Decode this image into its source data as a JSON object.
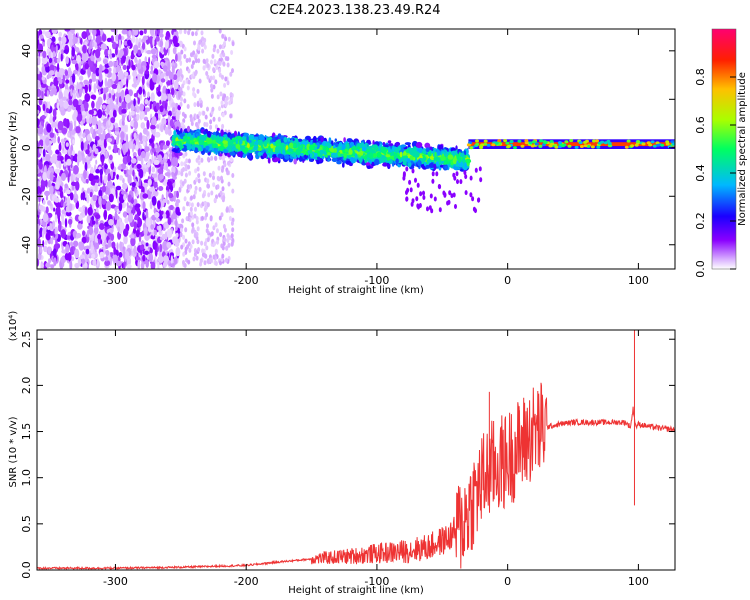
{
  "title": "C2E4.2023.138.23.49.R24",
  "chart_data": [
    {
      "type": "heatmap",
      "xlabel": "Height of straight line (km)",
      "ylabel": "Frequency (Hz)",
      "xlim": [
        -360,
        128
      ],
      "ylim": [
        -50,
        49
      ],
      "x_ticks": [
        -300,
        -200,
        -100,
        0,
        100
      ],
      "x_tick_labels": [
        "-300",
        "-200",
        "-100",
        "0",
        "100"
      ],
      "y_ticks": [
        40,
        20,
        0,
        -20,
        -40
      ],
      "y_tick_labels": [
        "40",
        "20",
        "0",
        "-20",
        "-40"
      ],
      "colorbar": {
        "label": "Normalized spectral amplitude",
        "range": [
          0,
          1
        ],
        "ticks": [
          0.0,
          0.2,
          0.4,
          0.6,
          0.8
        ],
        "tick_labels": [
          "0.0",
          "0.2",
          "0.4",
          "0.6",
          "0.8"
        ],
        "colors": [
          "#ffffff",
          "#8800ff",
          "#0000ff",
          "#00ccff",
          "#00ff66",
          "#ccff00",
          "#ffaa00",
          "#ff0000",
          "#ff0088"
        ]
      },
      "regions": [
        {
          "x": [
            -360,
            -250
          ],
          "freq_spread": 49,
          "amplitude": 0.1
        },
        {
          "x": [
            -250,
            -210
          ],
          "freq_spread": 49,
          "amplitude": 0.03
        },
        {
          "x": [
            -255,
            -30
          ],
          "freq_center_start": 3,
          "freq_center_end": -5,
          "freq_halfwidth": 6,
          "amplitude": 0.5
        },
        {
          "x": [
            -30,
            128
          ],
          "freq_center": 1.5,
          "freq_halfwidth": 1,
          "amplitude": 0.85
        }
      ],
      "grid": false
    },
    {
      "type": "line",
      "xlabel": "Height of straight line (km)",
      "ylabel": "SNR (10 * v/v)",
      "y_scale_note": "(x10⁴)",
      "xlim": [
        -360,
        128
      ],
      "ylim": [
        0,
        2.6
      ],
      "x_ticks": [
        -300,
        -200,
        -100,
        0,
        100
      ],
      "x_tick_labels": [
        "-300",
        "-200",
        "-100",
        "0",
        "100"
      ],
      "y_ticks": [
        0.0,
        0.5,
        1.0,
        1.5,
        2.0,
        2.5
      ],
      "y_tick_labels": [
        "0.0",
        "0.5",
        "1.0",
        "1.5",
        "2.0",
        "2.5"
      ],
      "color": "#ee3333",
      "series": [
        {
          "x": [
            -360,
            -300,
            -250,
            -200,
            -180,
            -150,
            -120,
            -100,
            -80,
            -60,
            -45,
            -35,
            -25,
            -18,
            -12,
            -5,
            0,
            10,
            20,
            30,
            40,
            50,
            60,
            70,
            80,
            90,
            94,
            96,
            98,
            100,
            110,
            120,
            128
          ],
          "y": [
            0.02,
            0.02,
            0.03,
            0.05,
            0.08,
            0.12,
            0.15,
            0.18,
            0.2,
            0.25,
            0.35,
            0.5,
            0.8,
            1.0,
            1.1,
            1.15,
            1.2,
            1.35,
            1.5,
            1.55,
            1.58,
            1.6,
            1.6,
            1.6,
            1.6,
            1.6,
            1.55,
            1.75,
            1.55,
            1.58,
            1.55,
            1.53,
            1.52
          ]
        }
      ],
      "peaks": [
        [
          -14,
          1.93
        ],
        [
          9,
          1.73
        ],
        [
          97,
          2.6
        ],
        [
          97,
          0.7
        ]
      ],
      "grid": false
    }
  ]
}
